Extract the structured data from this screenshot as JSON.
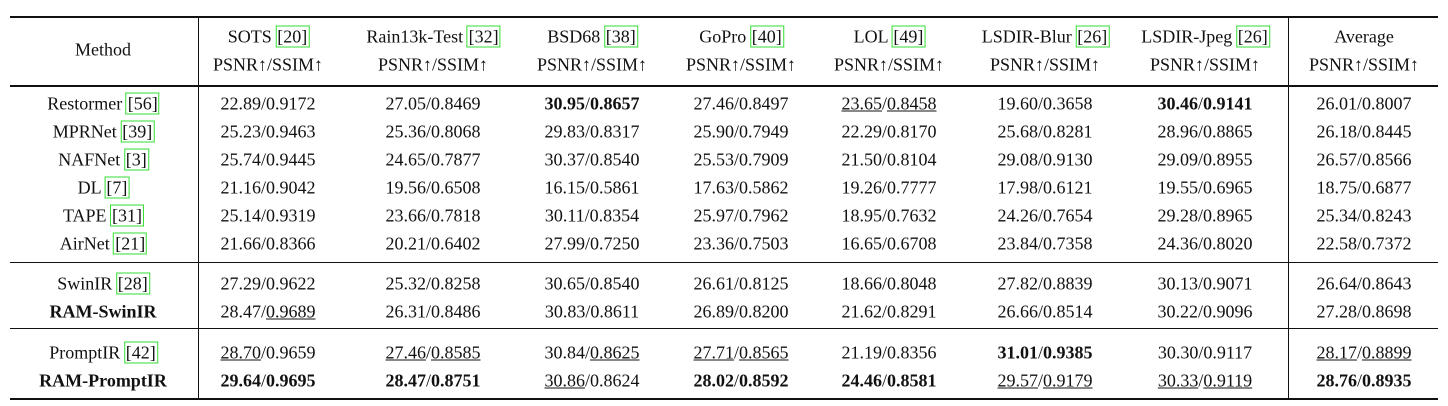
{
  "header": {
    "method": "Method",
    "metric": "PSNR↑/SSIM↑",
    "datasets": [
      {
        "name": "SOTS",
        "cite": "[20]"
      },
      {
        "name": "Rain13k-Test",
        "cite": "[32]"
      },
      {
        "name": "BSD68",
        "cite": "[38]"
      },
      {
        "name": "GoPro",
        "cite": "[40]"
      },
      {
        "name": "LOL",
        "cite": "[49]"
      },
      {
        "name": "LSDIR-Blur",
        "cite": "[26]"
      },
      {
        "name": "LSDIR-Jpeg",
        "cite": "[26]"
      },
      {
        "name": "Average"
      }
    ]
  },
  "separator": "/",
  "groups": [
    {
      "rows": [
        {
          "method": "Restormer",
          "cite": "[56]",
          "cells": [
            {
              "values": [
                "22.89",
                "0.9172"
              ]
            },
            {
              "values": [
                "27.05",
                "0.8469"
              ]
            },
            {
              "values": [
                "30.95",
                "0.8657"
              ],
              "styles": [
                "bold",
                "bold"
              ]
            },
            {
              "values": [
                "27.46",
                "0.8497"
              ]
            },
            {
              "values": [
                "23.65",
                "0.8458"
              ],
              "styles": [
                "underline",
                "underline"
              ]
            },
            {
              "values": [
                "19.60",
                "0.3658"
              ]
            },
            {
              "values": [
                "30.46",
                "0.9141"
              ],
              "styles": [
                "bold",
                "bold"
              ]
            },
            {
              "values": [
                "26.01",
                "0.8007"
              ]
            }
          ]
        },
        {
          "method": "MPRNet",
          "cite": "[39]",
          "cells": [
            {
              "values": [
                "25.23",
                "0.9463"
              ]
            },
            {
              "values": [
                "25.36",
                "0.8068"
              ]
            },
            {
              "values": [
                "29.83",
                "0.8317"
              ]
            },
            {
              "values": [
                "25.90",
                "0.7949"
              ]
            },
            {
              "values": [
                "22.29",
                "0.8170"
              ]
            },
            {
              "values": [
                "25.68",
                "0.8281"
              ]
            },
            {
              "values": [
                "28.96",
                "0.8865"
              ]
            },
            {
              "values": [
                "26.18",
                "0.8445"
              ]
            }
          ]
        },
        {
          "method": "NAFNet",
          "cite": "[3]",
          "cells": [
            {
              "values": [
                "25.74",
                "0.9445"
              ]
            },
            {
              "values": [
                "24.65",
                "0.7877"
              ]
            },
            {
              "values": [
                "30.37",
                "0.8540"
              ]
            },
            {
              "values": [
                "25.53",
                "0.7909"
              ]
            },
            {
              "values": [
                "21.50",
                "0.8104"
              ]
            },
            {
              "values": [
                "29.08",
                "0.9130"
              ]
            },
            {
              "values": [
                "29.09",
                "0.8955"
              ]
            },
            {
              "values": [
                "26.57",
                "0.8566"
              ]
            }
          ]
        },
        {
          "method": "DL",
          "cite": "[7]",
          "cells": [
            {
              "values": [
                "21.16",
                "0.9042"
              ]
            },
            {
              "values": [
                "19.56",
                "0.6508"
              ]
            },
            {
              "values": [
                "16.15",
                "0.5861"
              ]
            },
            {
              "values": [
                "17.63",
                "0.5862"
              ]
            },
            {
              "values": [
                "19.26",
                "0.7777"
              ]
            },
            {
              "values": [
                "17.98",
                "0.6121"
              ]
            },
            {
              "values": [
                "19.55",
                "0.6965"
              ]
            },
            {
              "values": [
                "18.75",
                "0.6877"
              ]
            }
          ]
        },
        {
          "method": "TAPE",
          "cite": "[31]",
          "cells": [
            {
              "values": [
                "25.14",
                "0.9319"
              ]
            },
            {
              "values": [
                "23.66",
                "0.7818"
              ]
            },
            {
              "values": [
                "30.11",
                "0.8354"
              ]
            },
            {
              "values": [
                "25.97",
                "0.7962"
              ]
            },
            {
              "values": [
                "18.95",
                "0.7632"
              ]
            },
            {
              "values": [
                "24.26",
                "0.7654"
              ]
            },
            {
              "values": [
                "29.28",
                "0.8965"
              ]
            },
            {
              "values": [
                "25.34",
                "0.8243"
              ]
            }
          ]
        },
        {
          "method": "AirNet",
          "cite": "[21]",
          "cells": [
            {
              "values": [
                "21.66",
                "0.8366"
              ]
            },
            {
              "values": [
                "20.21",
                "0.6402"
              ]
            },
            {
              "values": [
                "27.99",
                "0.7250"
              ]
            },
            {
              "values": [
                "23.36",
                "0.7503"
              ]
            },
            {
              "values": [
                "16.65",
                "0.6708"
              ]
            },
            {
              "values": [
                "23.84",
                "0.7358"
              ]
            },
            {
              "values": [
                "24.36",
                "0.8020"
              ]
            },
            {
              "values": [
                "22.58",
                "0.7372"
              ]
            }
          ]
        }
      ]
    },
    {
      "rows": [
        {
          "method": "SwinIR",
          "cite": "[28]",
          "cells": [
            {
              "values": [
                "27.29",
                "0.9622"
              ]
            },
            {
              "values": [
                "25.32",
                "0.8258"
              ]
            },
            {
              "values": [
                "30.65",
                "0.8540"
              ]
            },
            {
              "values": [
                "26.61",
                "0.8125"
              ]
            },
            {
              "values": [
                "18.66",
                "0.8048"
              ]
            },
            {
              "values": [
                "27.82",
                "0.8839"
              ]
            },
            {
              "values": [
                "30.13",
                "0.9071"
              ]
            },
            {
              "values": [
                "26.64",
                "0.8643"
              ]
            }
          ]
        },
        {
          "method": "RAM-SwinIR",
          "method_style": "bold",
          "cells": [
            {
              "values": [
                "28.47",
                "0.9689"
              ],
              "styles": [
                "plain",
                "underline"
              ]
            },
            {
              "values": [
                "26.31",
                "0.8486"
              ]
            },
            {
              "values": [
                "30.83",
                "0.8611"
              ]
            },
            {
              "values": [
                "26.89",
                "0.8200"
              ]
            },
            {
              "values": [
                "21.62",
                "0.8291"
              ]
            },
            {
              "values": [
                "26.66",
                "0.8514"
              ]
            },
            {
              "values": [
                "30.22",
                "0.9096"
              ]
            },
            {
              "values": [
                "27.28",
                "0.8698"
              ]
            }
          ]
        }
      ]
    },
    {
      "rows": [
        {
          "method": "PromptIR",
          "cite": "[42]",
          "cells": [
            {
              "values": [
                "28.70",
                "0.9659"
              ],
              "styles": [
                "underline",
                "plain"
              ]
            },
            {
              "values": [
                "27.46",
                "0.8585"
              ],
              "styles": [
                "underline",
                "underline"
              ]
            },
            {
              "values": [
                "30.84",
                "0.8625"
              ],
              "styles": [
                "plain",
                "underline"
              ]
            },
            {
              "values": [
                "27.71",
                "0.8565"
              ],
              "styles": [
                "underline",
                "underline"
              ]
            },
            {
              "values": [
                "21.19",
                "0.8356"
              ]
            },
            {
              "values": [
                "31.01",
                "0.9385"
              ],
              "styles": [
                "bold",
                "bold"
              ]
            },
            {
              "values": [
                "30.30",
                "0.9117"
              ]
            },
            {
              "values": [
                "28.17",
                "0.8899"
              ],
              "styles": [
                "underline",
                "underline"
              ]
            }
          ]
        },
        {
          "method": "RAM-PromptIR",
          "method_style": "bold",
          "cells": [
            {
              "values": [
                "29.64",
                "0.9695"
              ],
              "styles": [
                "bold",
                "bold"
              ]
            },
            {
              "values": [
                "28.47",
                "0.8751"
              ],
              "styles": [
                "bold",
                "bold"
              ]
            },
            {
              "values": [
                "30.86",
                "0.8624"
              ],
              "styles": [
                "underline",
                "plain"
              ]
            },
            {
              "values": [
                "28.02",
                "0.8592"
              ],
              "styles": [
                "bold",
                "bold"
              ]
            },
            {
              "values": [
                "24.46",
                "0.8581"
              ],
              "styles": [
                "bold",
                "bold"
              ]
            },
            {
              "values": [
                "29.57",
                "0.9179"
              ],
              "styles": [
                "underline",
                "underline"
              ]
            },
            {
              "values": [
                "30.33",
                "0.9119"
              ],
              "styles": [
                "underline",
                "underline"
              ]
            },
            {
              "values": [
                "28.76",
                "0.8935"
              ],
              "styles": [
                "bold",
                "bold"
              ]
            }
          ]
        }
      ]
    }
  ]
}
